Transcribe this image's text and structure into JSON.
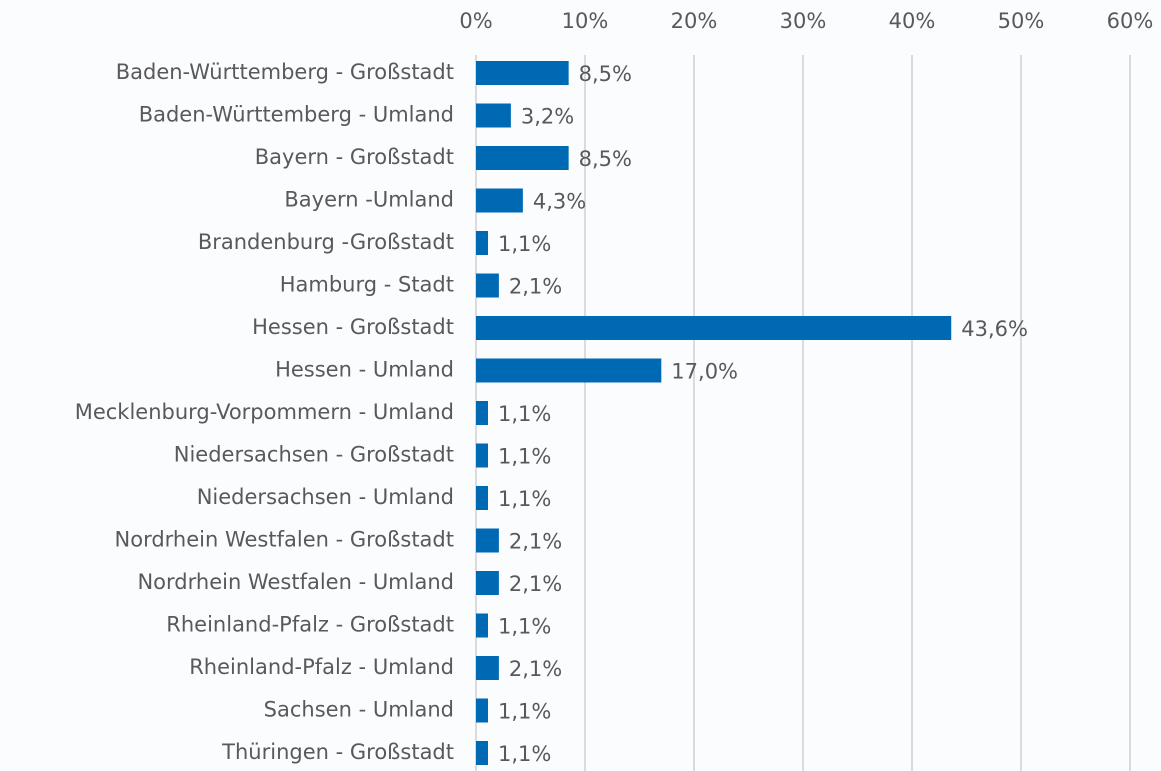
{
  "chart_data": {
    "type": "bar",
    "orientation": "horizontal",
    "color": "#0069b4",
    "grid": true,
    "categories": [
      "Baden-Württemberg - Großstadt",
      "Baden-Württemberg - Umland",
      "Bayern - Großstadt",
      "Bayern -Umland",
      "Brandenburg -Großstadt",
      "Hamburg - Stadt",
      "Hessen - Großstadt",
      "Hessen - Umland",
      "Mecklenburg-Vorpommern - Umland",
      "Niedersachsen - Großstadt",
      "Niedersachsen - Umland",
      "Nordrhein Westfalen - Großstadt",
      "Nordrhein Westfalen - Umland",
      "Rheinland-Pfalz - Großstadt",
      "Rheinland-Pfalz - Umland",
      "Sachsen - Umland",
      "Thüringen - Großstadt"
    ],
    "values": [
      8.5,
      3.2,
      8.5,
      4.3,
      1.1,
      2.1,
      43.6,
      17.0,
      1.1,
      1.1,
      1.1,
      2.1,
      2.1,
      1.1,
      2.1,
      1.1,
      1.1
    ],
    "value_labels": [
      "8,5%",
      "3,2%",
      "8,5%",
      "4,3%",
      "1,1%",
      "2,1%",
      "43,6%",
      "17,0%",
      "1,1%",
      "1,1%",
      "1,1%",
      "2,1%",
      "2,1%",
      "1,1%",
      "2,1%",
      "1,1%",
      "1,1%"
    ],
    "xlim": [
      0,
      60
    ],
    "xticks": [
      {
        "value": 0,
        "label": "0%"
      },
      {
        "value": 10,
        "label": "10%"
      },
      {
        "value": 20,
        "label": "20%"
      },
      {
        "value": 30,
        "label": "30%"
      },
      {
        "value": 40,
        "label": "40%"
      },
      {
        "value": 50,
        "label": "50%"
      },
      {
        "value": 60,
        "label": "60%"
      }
    ]
  }
}
